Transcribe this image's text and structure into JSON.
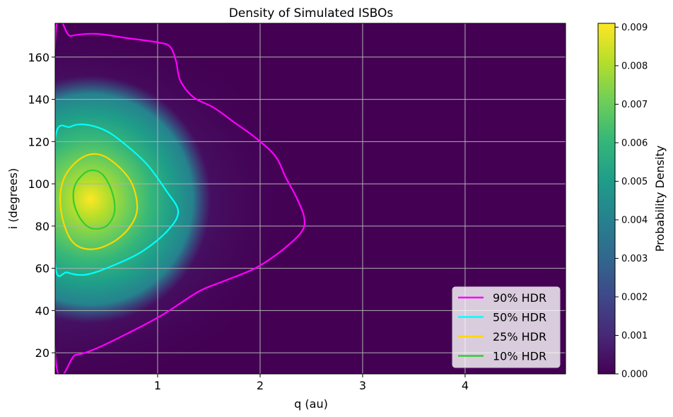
{
  "chart_data": {
    "type": "heatmap",
    "title": "Density of Simulated ISBOs",
    "xlabel": "q (au)",
    "ylabel": "i (degrees)",
    "xlim": [
      0.0,
      4.98
    ],
    "ylim": [
      10,
      176
    ],
    "xticks": [
      1,
      2,
      3,
      4
    ],
    "yticks": [
      20,
      40,
      60,
      80,
      100,
      120,
      140,
      160
    ],
    "grid": true,
    "colormap": "viridis",
    "colorbar": {
      "label": "Probability Density",
      "min": 0.0,
      "max": 0.0091,
      "ticks": [
        "0.000",
        "0.001",
        "0.002",
        "0.003",
        "0.004",
        "0.005",
        "0.006",
        "0.007",
        "0.008",
        "0.009"
      ]
    },
    "density_peak": {
      "q": 0.38,
      "i": 93,
      "value": 0.0091
    },
    "legend_position": "lower right",
    "series": [
      {
        "name": "90% HDR",
        "color": "#ff00ff",
        "points": [
          [
            0.0,
            167
          ],
          [
            0.15,
            170
          ],
          [
            0.4,
            171
          ],
          [
            0.7,
            169
          ],
          [
            1.0,
            167
          ],
          [
            1.12,
            165
          ],
          [
            1.18,
            158
          ],
          [
            1.22,
            149
          ],
          [
            1.35,
            141
          ],
          [
            1.55,
            136
          ],
          [
            1.75,
            129
          ],
          [
            1.95,
            122
          ],
          [
            2.15,
            113
          ],
          [
            2.25,
            103
          ],
          [
            2.35,
            94
          ],
          [
            2.43,
            84
          ],
          [
            2.4,
            77
          ],
          [
            2.2,
            68
          ],
          [
            1.95,
            60
          ],
          [
            1.65,
            54
          ],
          [
            1.4,
            49
          ],
          [
            1.05,
            38
          ],
          [
            0.7,
            29
          ],
          [
            0.4,
            22
          ],
          [
            0.2,
            19
          ],
          [
            0.0,
            20
          ]
        ]
      },
      {
        "name": "50% HDR",
        "color": "#00ffff",
        "points": [
          [
            0.0,
            121
          ],
          [
            0.15,
            127
          ],
          [
            0.3,
            128
          ],
          [
            0.5,
            125
          ],
          [
            0.7,
            118
          ],
          [
            0.9,
            109
          ],
          [
            1.08,
            97
          ],
          [
            1.2,
            87
          ],
          [
            1.1,
            78
          ],
          [
            0.85,
            68
          ],
          [
            0.55,
            61
          ],
          [
            0.3,
            57
          ],
          [
            0.12,
            58
          ],
          [
            0.0,
            62
          ]
        ]
      },
      {
        "name": "25% HDR",
        "color": "#ffd700",
        "points": [
          [
            0.1,
            104
          ],
          [
            0.25,
            112
          ],
          [
            0.42,
            114
          ],
          [
            0.6,
            109
          ],
          [
            0.75,
            100
          ],
          [
            0.8,
            88
          ],
          [
            0.72,
            79
          ],
          [
            0.55,
            72
          ],
          [
            0.35,
            69
          ],
          [
            0.18,
            72
          ],
          [
            0.08,
            82
          ],
          [
            0.05,
            94
          ]
        ]
      },
      {
        "name": "10% HDR",
        "color": "#32cd32",
        "points": [
          [
            0.2,
            100
          ],
          [
            0.32,
            106
          ],
          [
            0.45,
            105
          ],
          [
            0.55,
            97
          ],
          [
            0.58,
            87
          ],
          [
            0.5,
            80
          ],
          [
            0.35,
            79
          ],
          [
            0.24,
            84
          ],
          [
            0.18,
            92
          ]
        ]
      }
    ]
  }
}
